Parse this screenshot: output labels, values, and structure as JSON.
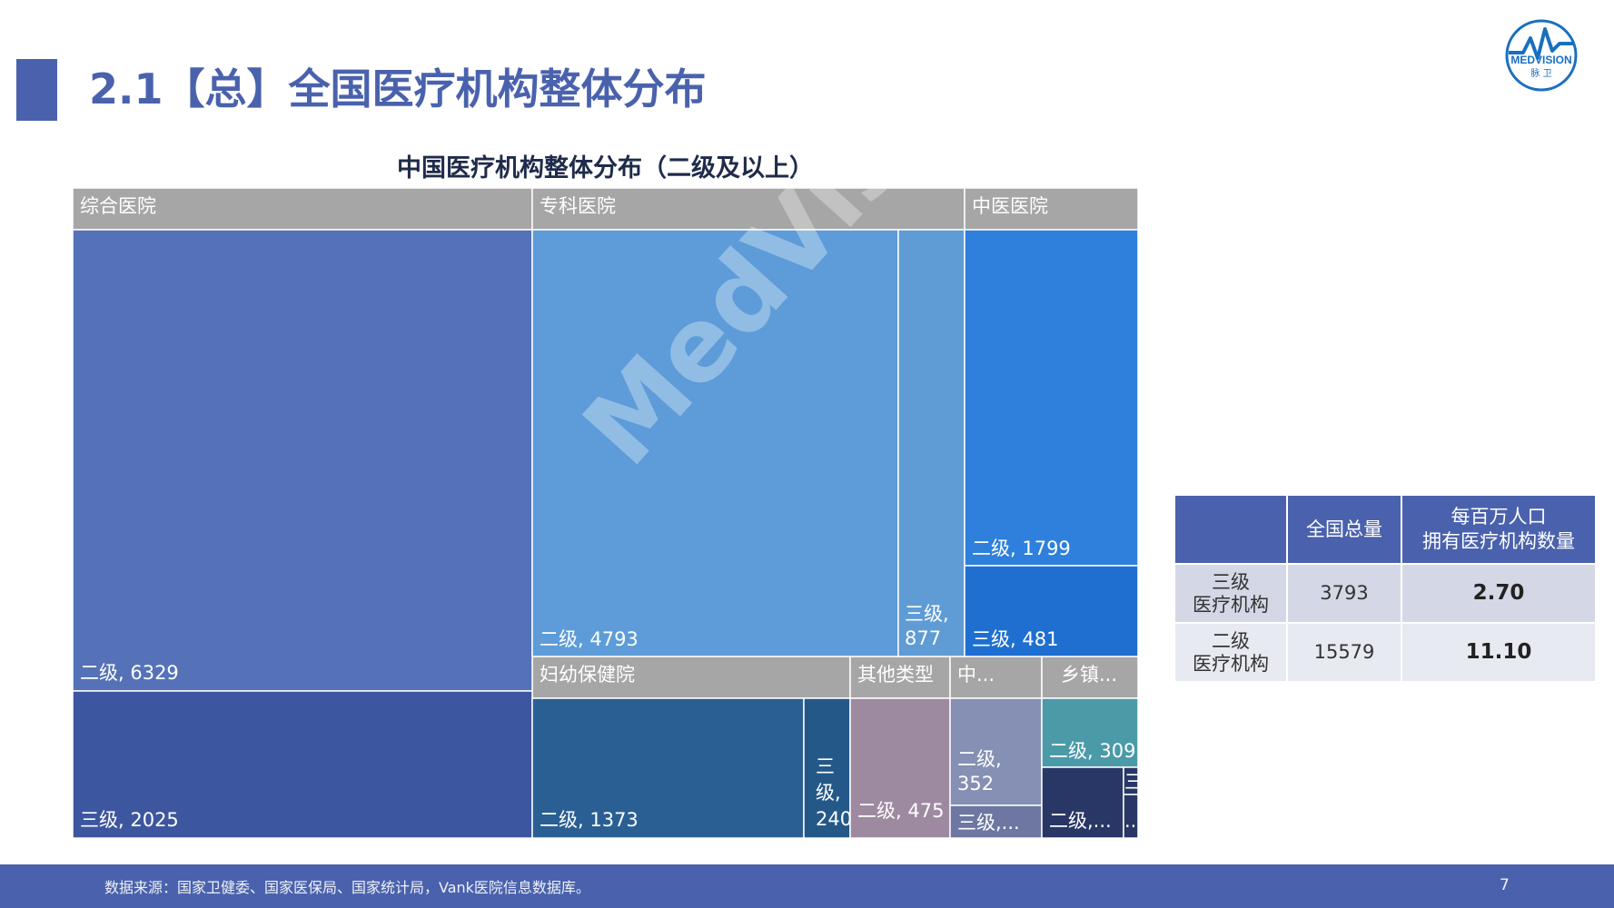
{
  "header": {
    "title": "2.1【总】全国医疗机构整体分布",
    "logo_text": "MEDVISION",
    "logo_subtext": "脉 卫"
  },
  "watermark": "MedVision",
  "chart_data": {
    "type": "treemap",
    "title": "中国医疗机构整体分布（二级及以上）",
    "groups": [
      {
        "name": "综合医院",
        "children": [
          {
            "name": "二级",
            "value": 6329
          },
          {
            "name": "三级",
            "value": 2025
          }
        ]
      },
      {
        "name": "专科医院",
        "children": [
          {
            "name": "二级",
            "value": 4793
          },
          {
            "name": "三级",
            "value": 877
          }
        ]
      },
      {
        "name": "中医医院",
        "children": [
          {
            "name": "二级",
            "value": 1799
          },
          {
            "name": "三级",
            "value": 481
          }
        ]
      },
      {
        "name": "妇幼保健院",
        "children": [
          {
            "name": "二级",
            "value": 1373
          },
          {
            "name": "三级",
            "value": 240
          }
        ]
      },
      {
        "name": "其他类型",
        "children": [
          {
            "name": "二级",
            "value": 475
          }
        ]
      },
      {
        "name": "中...",
        "children": [
          {
            "name": "二级",
            "value": 352
          },
          {
            "name": "三级,..."
          }
        ]
      },
      {
        "name": "乡镇...",
        "children": [
          {
            "name": "二级",
            "value": 309
          },
          {
            "name": "二级,..."
          },
          {
            "name": "三"
          },
          {
            "name": "..."
          }
        ]
      }
    ],
    "colors": {
      "header": "#a6a6a6",
      "general_l2": "#5572b8",
      "general_l3": "#3d56a0",
      "specialty_l2": "#5d9cd8",
      "specialty_l3": "#5f9bd4",
      "tcm_l2": "#2e80dc",
      "tcm_l3": "#1f6fd0",
      "maternal_l2": "#2a5f93",
      "maternal_l3": "#245889",
      "other_l2": "#9d8aa0",
      "zhong_l2": "#8590b4",
      "zhong_l3": "#6d77a1",
      "town_l2": "#4a9aa8",
      "town_other": "#293766"
    }
  },
  "table": {
    "headers": [
      "",
      "全国总量",
      "每百万人口\n拥有医疗机构数量"
    ],
    "rows": [
      {
        "label": "三级\n医疗机构",
        "total": "3793",
        "per_million": "2.70"
      },
      {
        "label": "二级\n医疗机构",
        "total": "15579",
        "per_million": "11.10"
      }
    ]
  },
  "footer": {
    "source": "数据来源：国家卫健委、国家医保局、国家统计局，Vank医院信息数据库。",
    "page": "7"
  }
}
